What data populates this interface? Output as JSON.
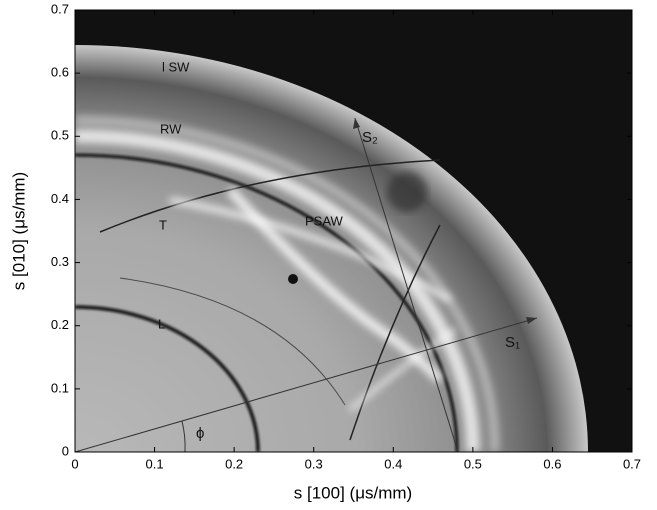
{
  "chart_data": {
    "type": "image",
    "x_label": "s  [100]  (μs/mm)",
    "y_label": "s  [010]  (μs/mm)",
    "xlim": [
      0,
      0.7
    ],
    "ylim": [
      0,
      0.7
    ],
    "xticks": [
      0,
      0.1,
      0.2,
      0.3,
      0.4,
      0.5,
      0.6,
      0.7
    ],
    "yticks": [
      0,
      0.1,
      0.2,
      0.3,
      0.4,
      0.5,
      0.6,
      0.7
    ],
    "annotations": [
      "l SW",
      "RW",
      "T",
      "PSAW",
      "L",
      "S₂",
      "S₁",
      "ϕ"
    ]
  }
}
